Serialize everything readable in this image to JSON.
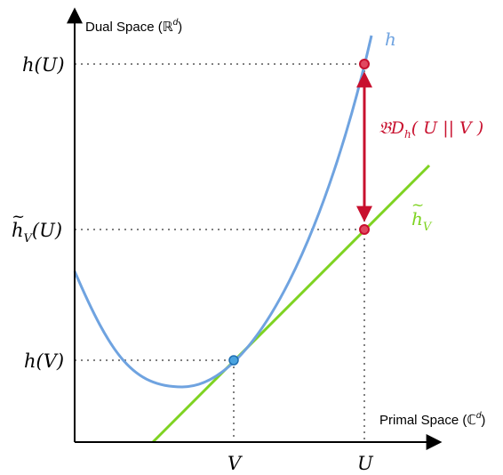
{
  "axes": {
    "y_label": "Dual Space (ℝ",
    "y_label_sup": "d",
    "y_label_close": ")",
    "x_label": "Primal Space (ℂ",
    "x_label_sup": "d",
    "x_label_close": ")"
  },
  "ticks": {
    "x_V": "V",
    "x_U": "U",
    "y_hU": "h(U)",
    "y_hV": "h(V)",
    "y_tilde_h": "h",
    "y_tilde_sub": "V",
    "y_tilde_arg": "(U)"
  },
  "curves": {
    "h_label": "h",
    "tangent_label": "h",
    "tangent_sub": "V"
  },
  "divergence": {
    "prefix": "𝔅D",
    "sub": "h",
    "body": "( U || V )"
  },
  "colors": {
    "curve": "#6fa3e0",
    "tangent": "#7ed321",
    "divergence": "#c8102e",
    "point_V": "#4aa3df",
    "axis": "#000000",
    "guide": "#808080"
  }
}
